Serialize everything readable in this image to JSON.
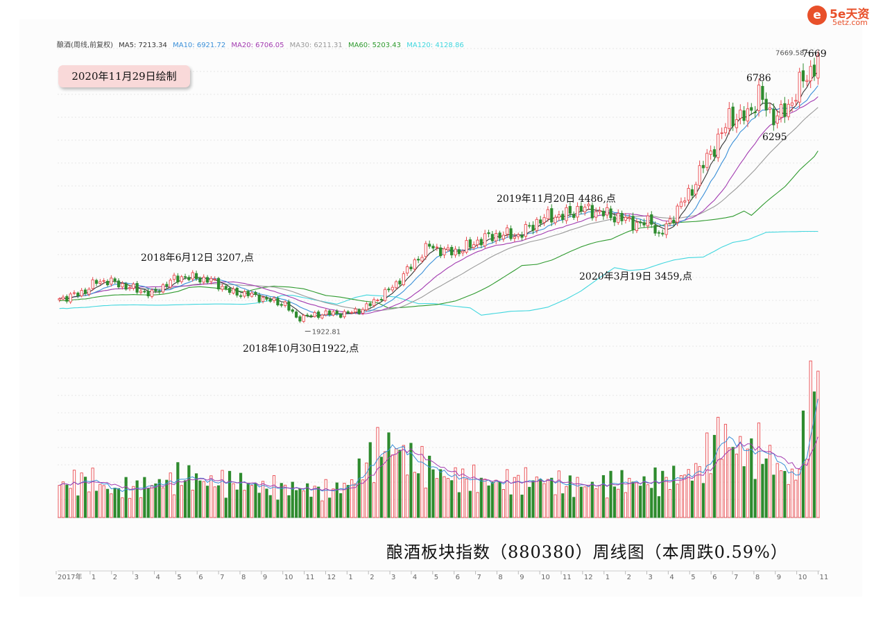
{
  "logo": {
    "mark": "e",
    "brand": "5e天资",
    "site": "5etz.com"
  },
  "legend": {
    "title": "酿酒(周线,前复权)",
    "items": [
      {
        "label": "MA5: 7213.34",
        "color": "#333333"
      },
      {
        "label": "MA10: 6921.72",
        "color": "#3a8fd8"
      },
      {
        "label": "MA20: 6706.05",
        "color": "#a23ab0"
      },
      {
        "label": "MA30: 6211.31",
        "color": "#999999"
      },
      {
        "label": "MA60: 5203.43",
        "color": "#2e9a2e"
      },
      {
        "label": "MA120: 4128.86",
        "color": "#3fd6de"
      }
    ]
  },
  "badge": "2020年11月29日绘制",
  "annotations": {
    "a2018jun": "2018年6月12日 3207,点",
    "a2018oct": "2018年10月30日1922,点",
    "a2019nov": "2019年11月20日 4486,点",
    "a2020mar": "2020年3月19日 3459,点",
    "a6786": "6786",
    "a6295": "6295",
    "a7669": "7669"
  },
  "caption": "酿酒板块指数（880380）周线图（本周跌0.59%）",
  "chart_data": {
    "type": "candlestick",
    "colors": {
      "up": "#e8484d",
      "down": "#2e8b2e",
      "ma5": "#333333",
      "ma10": "#3a8fd8",
      "ma20": "#a23ab0",
      "ma30": "#999999",
      "ma60": "#2e9a2e",
      "ma120": "#3fd6de"
    },
    "price_range": [
      1300,
      7800
    ],
    "volume_range": [
      0,
      100
    ],
    "low_marker": {
      "label": "1922.81",
      "value": 1922.81
    },
    "high_marker": {
      "label": "7669.58",
      "value": 7669.58
    },
    "x_tick_labels": [
      "2017年",
      "1",
      "2",
      "3",
      "4",
      "5",
      "6",
      "7",
      "8",
      "9",
      "10",
      "11",
      "12",
      "1",
      "2",
      "3",
      "4",
      "5",
      "6",
      "7",
      "8",
      "9",
      "10",
      "11",
      "12",
      "1",
      "2",
      "3",
      "4",
      "5",
      "6",
      "7",
      "8",
      "9",
      "10",
      "11"
    ],
    "anchors": [
      [
        0,
        2350
      ],
      [
        3,
        2400
      ],
      [
        7,
        2520
      ],
      [
        10,
        2720
      ],
      [
        13,
        2740
      ],
      [
        18,
        2620
      ],
      [
        22,
        2520
      ],
      [
        25,
        2450
      ],
      [
        30,
        2730
      ],
      [
        33,
        2830
      ],
      [
        37,
        2800
      ],
      [
        41,
        2750
      ],
      [
        47,
        2470
      ],
      [
        51,
        2450
      ],
      [
        56,
        2330
      ],
      [
        61,
        2230
      ],
      [
        64,
        1930
      ],
      [
        68,
        1980
      ],
      [
        72,
        2030
      ],
      [
        77,
        2020
      ],
      [
        82,
        2120
      ],
      [
        87,
        2400
      ],
      [
        91,
        2680
      ],
      [
        96,
        3150
      ],
      [
        100,
        3510
      ],
      [
        104,
        3370
      ],
      [
        108,
        3390
      ],
      [
        113,
        3600
      ],
      [
        116,
        3700
      ],
      [
        120,
        3750
      ],
      [
        124,
        3720
      ],
      [
        129,
        4020
      ],
      [
        132,
        4140
      ],
      [
        136,
        4150
      ],
      [
        141,
        4320
      ],
      [
        146,
        4230
      ],
      [
        151,
        4120
      ],
      [
        154,
        4040
      ],
      [
        157,
        3960
      ],
      [
        160,
        4060
      ],
      [
        162,
        3680
      ],
      [
        164,
        3920
      ],
      [
        167,
        4300
      ],
      [
        171,
        4740
      ],
      [
        175,
        5440
      ],
      [
        179,
        5910
      ],
      [
        181,
        6360
      ],
      [
        184,
        6250
      ],
      [
        187,
        6490
      ],
      [
        189,
        6780
      ],
      [
        192,
        6410
      ],
      [
        194,
        6300
      ],
      [
        197,
        6520
      ],
      [
        200,
        7010
      ],
      [
        202,
        7200
      ],
      [
        204,
        7440
      ],
      [
        205,
        7530
      ]
    ],
    "volume_profile": [
      [
        0,
        22
      ],
      [
        8,
        26
      ],
      [
        14,
        18
      ],
      [
        20,
        20
      ],
      [
        28,
        24
      ],
      [
        34,
        28
      ],
      [
        40,
        24
      ],
      [
        48,
        24
      ],
      [
        56,
        20
      ],
      [
        64,
        20
      ],
      [
        72,
        18
      ],
      [
        78,
        22
      ],
      [
        84,
        40
      ],
      [
        88,
        50
      ],
      [
        92,
        46
      ],
      [
        96,
        36
      ],
      [
        100,
        34
      ],
      [
        104,
        28
      ],
      [
        110,
        26
      ],
      [
        116,
        24
      ],
      [
        122,
        24
      ],
      [
        130,
        26
      ],
      [
        136,
        22
      ],
      [
        144,
        22
      ],
      [
        152,
        24
      ],
      [
        160,
        24
      ],
      [
        168,
        28
      ],
      [
        174,
        34
      ],
      [
        178,
        58
      ],
      [
        182,
        48
      ],
      [
        186,
        44
      ],
      [
        190,
        46
      ],
      [
        194,
        34
      ],
      [
        198,
        26
      ],
      [
        200,
        36
      ],
      [
        202,
        72
      ],
      [
        205,
        100
      ]
    ]
  }
}
